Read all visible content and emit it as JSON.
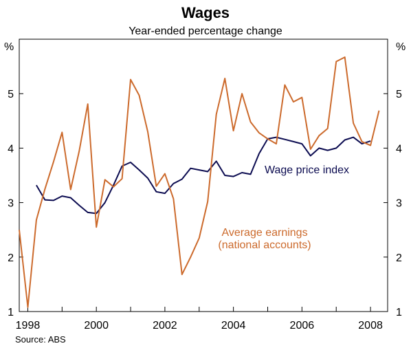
{
  "chart_data": {
    "type": "line",
    "title": "Wages",
    "subtitle": "Year-ended percentage change",
    "unit_left": "%",
    "unit_right": "%",
    "source": "Source: ABS",
    "ylim": [
      1,
      6
    ],
    "yticks": [
      1,
      2,
      3,
      4,
      5
    ],
    "xlim": [
      1997.75,
      2008.5
    ],
    "xticks": [
      1998,
      2000,
      2002,
      2004,
      2006,
      2008
    ],
    "grid": false,
    "colors": {
      "wpi": "#0b0b50",
      "avg": "#cc6a2c"
    },
    "series": [
      {
        "key": "wpi",
        "name": "Wage price index",
        "x": [
          1998.25,
          1998.5,
          1998.75,
          1999.0,
          1999.25,
          1999.5,
          1999.75,
          2000.0,
          2000.25,
          2000.5,
          2000.75,
          2001.0,
          2001.25,
          2001.5,
          2001.75,
          2002.0,
          2002.25,
          2002.5,
          2002.75,
          2003.0,
          2003.25,
          2003.5,
          2003.75,
          2004.0,
          2004.25,
          2004.5,
          2004.75,
          2005.0,
          2005.25,
          2005.5,
          2005.75,
          2006.0,
          2006.25,
          2006.5,
          2006.75,
          2007.0,
          2007.25,
          2007.5,
          2007.75,
          2008.0
        ],
        "y": [
          3.32,
          3.05,
          3.04,
          3.12,
          3.09,
          2.95,
          2.82,
          2.8,
          3.0,
          3.32,
          3.67,
          3.74,
          3.6,
          3.45,
          3.2,
          3.17,
          3.35,
          3.43,
          3.63,
          3.6,
          3.57,
          3.76,
          3.5,
          3.48,
          3.55,
          3.52,
          3.9,
          4.17,
          4.2,
          4.16,
          4.12,
          4.08,
          3.86,
          4.0,
          3.96,
          4.0,
          4.15,
          4.2,
          4.08,
          4.13
        ]
      },
      {
        "key": "avg",
        "name": "Average earnings",
        "name_line2": "(national accounts)",
        "x": [
          1997.75,
          1998.0,
          1998.25,
          1998.5,
          1998.75,
          1999.0,
          1999.25,
          1999.5,
          1999.75,
          2000.0,
          2000.25,
          2000.5,
          2000.75,
          2001.0,
          2001.25,
          2001.5,
          2001.75,
          2002.0,
          2002.25,
          2002.5,
          2002.75,
          2003.0,
          2003.25,
          2003.5,
          2003.75,
          2004.0,
          2004.25,
          2004.5,
          2004.75,
          2005.0,
          2005.25,
          2005.5,
          2005.75,
          2006.0,
          2006.25,
          2006.5,
          2006.75,
          2007.0,
          2007.25,
          2007.5,
          2007.75,
          2008.0,
          2008.25
        ],
        "y": [
          2.5,
          1.08,
          2.68,
          3.25,
          3.75,
          4.29,
          3.24,
          3.95,
          4.81,
          2.55,
          3.42,
          3.29,
          3.44,
          5.26,
          4.97,
          4.3,
          3.3,
          3.53,
          3.07,
          1.68,
          2.0,
          2.35,
          3.02,
          4.62,
          5.28,
          4.32,
          5.0,
          4.48,
          4.28,
          4.17,
          4.08,
          5.16,
          4.85,
          4.93,
          3.98,
          4.23,
          4.36,
          5.59,
          5.67,
          4.46,
          4.12,
          4.05,
          4.69
        ]
      }
    ]
  }
}
